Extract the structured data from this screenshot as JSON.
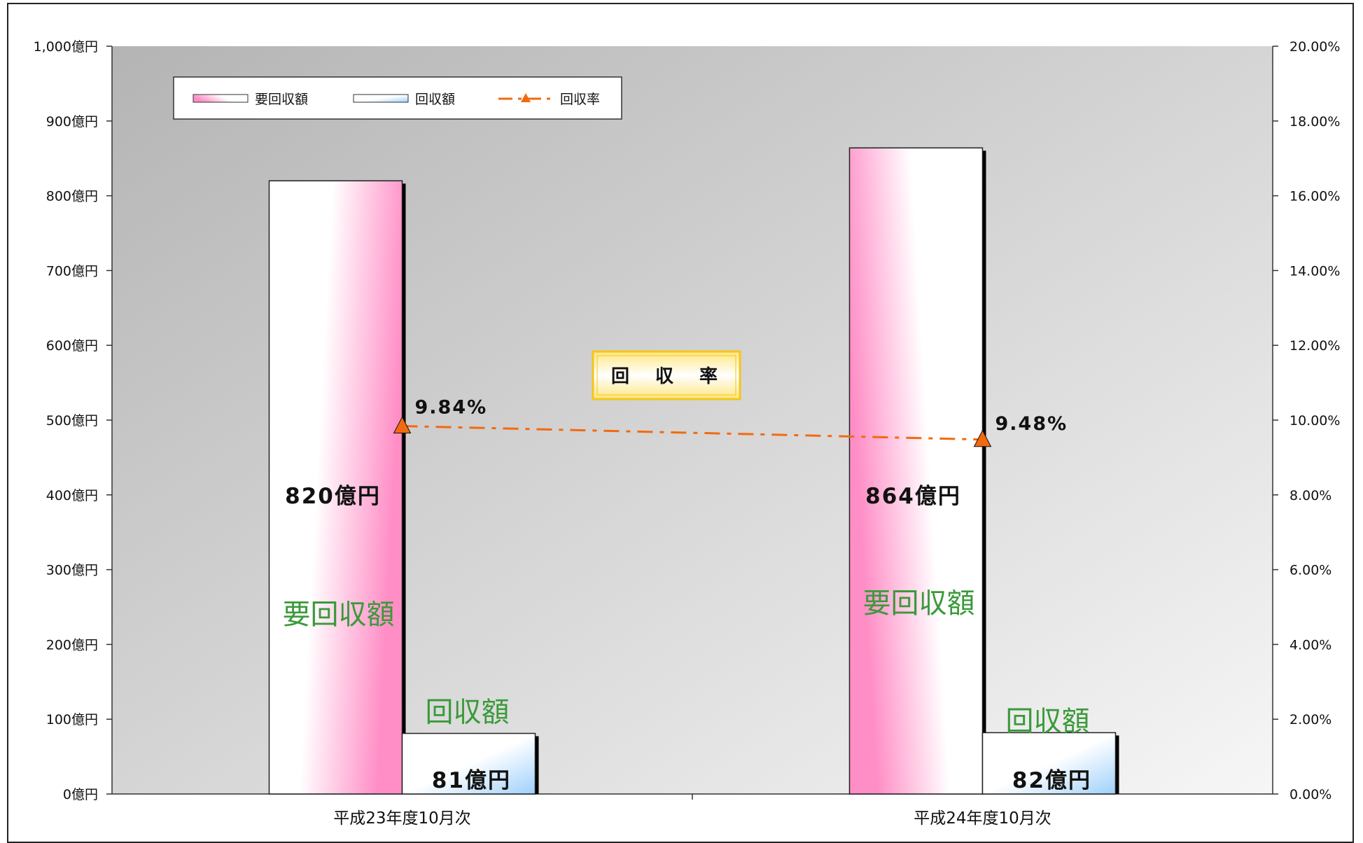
{
  "chart_data": {
    "type": "bar",
    "categories": [
      "平成23年度10月次",
      "平成24年度10月次"
    ],
    "series": [
      {
        "name": "要回収額",
        "values": [
          820,
          864
        ],
        "axis": "left",
        "value_labels": [
          "820億円",
          "864億円"
        ],
        "inner_label": "要回収額"
      },
      {
        "name": "回収額",
        "values": [
          81,
          82
        ],
        "axis": "left",
        "value_labels": [
          "81億円",
          "82億円"
        ],
        "inner_label": "回収額"
      },
      {
        "name": "回収率",
        "type": "line",
        "values": [
          9.84,
          9.48
        ],
        "axis": "right",
        "value_labels": [
          "9.84%",
          "9.48%"
        ]
      }
    ],
    "left_axis": {
      "ylim": [
        0,
        1000
      ],
      "ticks": [
        "0億円",
        "100億円",
        "200億円",
        "300億円",
        "400億円",
        "500億円",
        "600億円",
        "700億円",
        "800億円",
        "900億円",
        "1,000億円"
      ]
    },
    "right_axis": {
      "ylim": [
        0,
        20
      ],
      "ticks": [
        "0.00%",
        "2.00%",
        "4.00%",
        "6.00%",
        "8.00%",
        "10.00%",
        "12.00%",
        "14.00%",
        "16.00%",
        "18.00%",
        "20.00%"
      ]
    },
    "annotation": "回 収 率",
    "legend_position": "top-left",
    "grid": false
  },
  "colors": {
    "pink": "#ff8ec6",
    "blue": "#9fd0fb",
    "line": "#f26a10",
    "green_text": "#3a9a3a",
    "badge_border": "#f5c518"
  }
}
